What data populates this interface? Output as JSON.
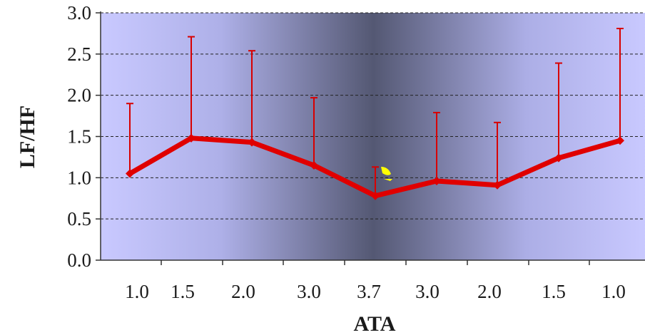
{
  "chart_data": {
    "type": "line",
    "xlabel": "ATA",
    "ylabel": "LF/HF",
    "ylim": [
      0,
      3.0
    ],
    "y_ticks": [
      "0.0",
      "0.5",
      "1.0",
      "1.5",
      "2.0",
      "2.5",
      "3.0"
    ],
    "categories": [
      "1.0",
      "1.5",
      "2.0",
      "3.0",
      "3.7",
      "3.0",
      "2.0",
      "1.5",
      "1.0"
    ],
    "grid": "horizontal dashed",
    "series": [
      {
        "values": [
          1.05,
          1.48,
          1.43,
          1.15,
          0.78,
          0.96,
          0.91,
          1.24,
          1.45
        ],
        "error_upper": [
          1.9,
          2.71,
          2.54,
          1.97,
          1.13,
          1.79,
          1.67,
          2.39,
          2.81
        ]
      }
    ],
    "colors": {
      "line": "#e00000",
      "error_bar": "#d80000",
      "plot_bg_edge": "#c6c6ff",
      "plot_bg_center": "#55597a",
      "grid": "#222222",
      "marker_highlight": "#ffff00"
    }
  }
}
